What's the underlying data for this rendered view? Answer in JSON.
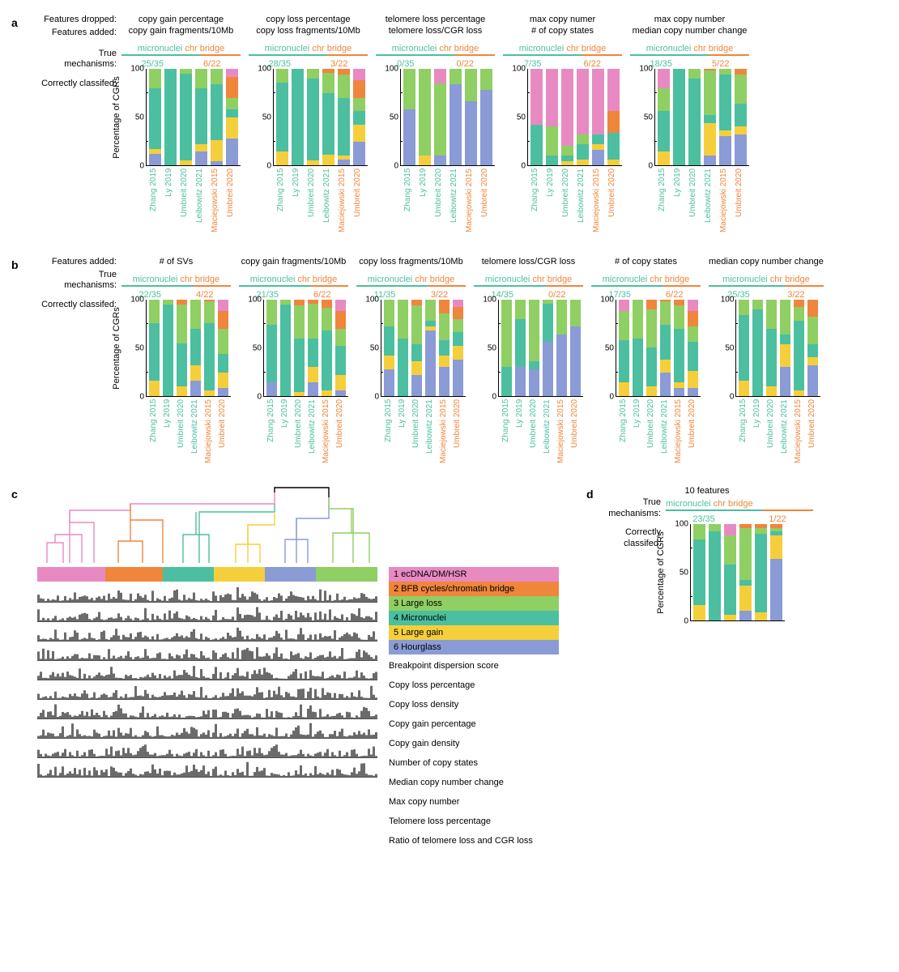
{
  "colors": {
    "micronuclei_text": "#4bbfa0",
    "chrbridge_text": "#f0853c",
    "cat1_ecDNA": "#e88ac2",
    "cat2_BFB": "#f0853c",
    "cat3_largeloss": "#8fcf63",
    "cat4_micronuclei": "#4bbfa0",
    "cat5_largegain": "#f5cf3b",
    "cat6_hourglass": "#8a9bd6",
    "axis": "#000000",
    "feat_gray": "#6b6b6b",
    "dend_black": "#000000"
  },
  "fontsizes": {
    "label": 11,
    "axis": 10,
    "panel_letter": 14
  },
  "y_axis": {
    "title": "Percentage of CGRs",
    "ticks": [
      0,
      50,
      100
    ],
    "minor_ticks": [
      25,
      75
    ]
  },
  "studies": [
    {
      "label": "Zhang 2015",
      "group": "micronuclei"
    },
    {
      "label": "Ly 2019",
      "group": "micronuclei"
    },
    {
      "label": "Umbreit 2020",
      "group": "micronuclei"
    },
    {
      "label": "Leibowitz 2021",
      "group": "micronuclei"
    },
    {
      "label": "Maciejowski 2015",
      "group": "chrbridge"
    },
    {
      "label": "Umbreit 2020",
      "group": "chrbridge"
    }
  ],
  "side_labels": {
    "features_dropped": "Features dropped:",
    "features_added": "Features added:",
    "true_mechanisms": "True mechanisms:",
    "correctly_classified": "Correctly classifed:"
  },
  "mechanisms": {
    "m1": "micronuclei",
    "m2": "chr bridge"
  },
  "segment_order": [
    "cat6_hourglass",
    "cat5_largegain",
    "cat4_micronuclei",
    "cat3_largeloss",
    "cat2_BFB",
    "cat1_ecDNA"
  ],
  "panel_a": {
    "subplots": [
      {
        "dropped": "copy gain percentage",
        "added": "copy gain fragments/10Mb",
        "cc_m": "25/35",
        "cc_b": "6/22",
        "bars": [
          [
            12,
            5,
            63,
            20,
            0,
            0
          ],
          [
            0,
            0,
            100,
            0,
            0,
            0
          ],
          [
            0,
            5,
            90,
            5,
            0,
            0
          ],
          [
            14,
            8,
            58,
            20,
            0,
            0
          ],
          [
            4,
            22,
            58,
            16,
            0,
            0
          ],
          [
            28,
            22,
            8,
            12,
            22,
            8
          ]
        ]
      },
      {
        "dropped": "copy loss percentage",
        "added": "copy loss fragments/10Mb",
        "cc_m": "28/35",
        "cc_b": "3/22",
        "bars": [
          [
            0,
            14,
            72,
            14,
            0,
            0
          ],
          [
            0,
            0,
            100,
            0,
            0,
            0
          ],
          [
            0,
            5,
            85,
            10,
            0,
            0
          ],
          [
            0,
            11,
            64,
            21,
            4,
            0
          ],
          [
            6,
            4,
            60,
            24,
            6,
            0
          ],
          [
            24,
            18,
            14,
            14,
            18,
            12
          ]
        ]
      },
      {
        "dropped": "telomere loss percentage",
        "added": "telomere loss/CGR loss",
        "cc_m": "0/35",
        "cc_b": "0/22",
        "bars": [
          [
            58,
            0,
            0,
            42,
            0,
            0
          ],
          [
            0,
            10,
            0,
            90,
            0,
            0
          ],
          [
            10,
            0,
            0,
            75,
            0,
            15
          ],
          [
            84,
            0,
            0,
            16,
            0,
            0
          ],
          [
            66,
            0,
            0,
            34,
            0,
            0
          ],
          [
            78,
            0,
            0,
            22,
            0,
            0
          ]
        ]
      },
      {
        "dropped": "max copy numer",
        "added": "# of copy states",
        "cc_m": "7/35",
        "cc_b": "6/22",
        "bars": [
          [
            0,
            0,
            42,
            0,
            0,
            58
          ],
          [
            0,
            0,
            10,
            30,
            0,
            60
          ],
          [
            0,
            4,
            6,
            10,
            0,
            80
          ],
          [
            0,
            6,
            16,
            10,
            0,
            68
          ],
          [
            16,
            6,
            10,
            0,
            0,
            68
          ],
          [
            0,
            6,
            28,
            0,
            22,
            44
          ]
        ]
      },
      {
        "dropped": "max copy number",
        "added": "median copy number change",
        "cc_m": "18/35",
        "cc_b": "5/22",
        "bars": [
          [
            0,
            14,
            42,
            24,
            0,
            20
          ],
          [
            0,
            0,
            100,
            0,
            0,
            0
          ],
          [
            0,
            0,
            90,
            10,
            0,
            0
          ],
          [
            10,
            34,
            8,
            46,
            2,
            0
          ],
          [
            30,
            6,
            58,
            6,
            0,
            0
          ],
          [
            32,
            8,
            24,
            30,
            6,
            0
          ]
        ]
      }
    ]
  },
  "panel_b": {
    "subplots": [
      {
        "added": "# of SVs",
        "cc_m": "22/35",
        "cc_b": "4/22",
        "bars": [
          [
            0,
            16,
            60,
            24,
            0,
            0
          ],
          [
            0,
            0,
            95,
            5,
            0,
            0
          ],
          [
            0,
            10,
            45,
            40,
            5,
            0
          ],
          [
            16,
            16,
            38,
            30,
            0,
            0
          ],
          [
            0,
            6,
            70,
            22,
            2,
            0
          ],
          [
            8,
            16,
            20,
            26,
            18,
            12
          ]
        ]
      },
      {
        "added": "copy gain fragments/10Mb",
        "cc_m": "21/35",
        "cc_b": "6/22",
        "bars": [
          [
            14,
            0,
            60,
            26,
            0,
            0
          ],
          [
            0,
            0,
            95,
            5,
            0,
            0
          ],
          [
            0,
            4,
            56,
            34,
            6,
            0
          ],
          [
            14,
            16,
            30,
            36,
            4,
            0
          ],
          [
            0,
            6,
            62,
            24,
            8,
            0
          ],
          [
            6,
            16,
            30,
            18,
            18,
            12
          ]
        ]
      },
      {
        "added": "copy loss fragments/10Mb",
        "cc_m": "11/35",
        "cc_b": "3/22",
        "bars": [
          [
            28,
            14,
            30,
            28,
            0,
            0
          ],
          [
            0,
            0,
            60,
            40,
            0,
            0
          ],
          [
            22,
            14,
            18,
            40,
            6,
            0
          ],
          [
            68,
            4,
            6,
            22,
            0,
            0
          ],
          [
            30,
            12,
            16,
            28,
            14,
            0
          ],
          [
            38,
            14,
            14,
            14,
            12,
            8
          ]
        ]
      },
      {
        "added": "telomere loss/CGR loss",
        "cc_m": "14/35",
        "cc_b": "0/22",
        "bars": [
          [
            0,
            0,
            30,
            70,
            0,
            0
          ],
          [
            30,
            0,
            50,
            20,
            0,
            0
          ],
          [
            28,
            0,
            8,
            64,
            0,
            0
          ],
          [
            56,
            0,
            40,
            4,
            0,
            0
          ],
          [
            64,
            0,
            0,
            36,
            0,
            0
          ],
          [
            72,
            0,
            0,
            28,
            0,
            0
          ]
        ]
      },
      {
        "added": "# of copy states",
        "cc_m": "17/35",
        "cc_b": "6/22",
        "bars": [
          [
            0,
            14,
            44,
            30,
            0,
            12
          ],
          [
            0,
            0,
            60,
            40,
            0,
            0
          ],
          [
            0,
            10,
            40,
            40,
            10,
            0
          ],
          [
            24,
            14,
            36,
            24,
            2,
            0
          ],
          [
            8,
            6,
            56,
            24,
            6,
            0
          ],
          [
            8,
            18,
            30,
            16,
            16,
            12
          ]
        ]
      },
      {
        "added": "median copy number change",
        "cc_m": "25/35",
        "cc_b": "3/22",
        "bars": [
          [
            0,
            16,
            68,
            16,
            0,
            0
          ],
          [
            0,
            0,
            90,
            10,
            0,
            0
          ],
          [
            0,
            10,
            60,
            30,
            0,
            0
          ],
          [
            30,
            24,
            10,
            36,
            0,
            0
          ],
          [
            0,
            6,
            72,
            14,
            8,
            0
          ],
          [
            32,
            8,
            14,
            28,
            18,
            0
          ]
        ]
      }
    ]
  },
  "panel_c": {
    "legend": [
      {
        "label": "1 ecDNA/DM/HSR",
        "color_key": "cat1_ecDNA"
      },
      {
        "label": "2 BFB cycles/chromatin bridge",
        "color_key": "cat2_BFB"
      },
      {
        "label": "3 Large loss",
        "color_key": "cat3_largeloss"
      },
      {
        "label": "4 Micronuclei",
        "color_key": "cat4_micronuclei"
      },
      {
        "label": "5 Large gain",
        "color_key": "cat5_largegain"
      },
      {
        "label": "6 Hourglass",
        "color_key": "cat6_hourglass"
      }
    ],
    "band_order": [
      {
        "key": "cat1_ecDNA",
        "width": 0.2
      },
      {
        "key": "cat2_BFB",
        "width": 0.17
      },
      {
        "key": "cat4_micronuclei",
        "width": 0.15
      },
      {
        "key": "cat5_largegain",
        "width": 0.15
      },
      {
        "key": "cat6_hourglass",
        "width": 0.15
      },
      {
        "key": "cat3_largeloss",
        "width": 0.18
      }
    ],
    "feature_labels": [
      "Breakpoint dispersion score",
      "Copy loss percentage",
      "Copy loss density",
      "Copy gain percentage",
      "Copy gain density",
      "Number of copy states",
      "Median copy number change",
      "Max copy number",
      "Telomere loss percentage",
      "Ratio of telomere loss and CGR loss"
    ],
    "dendrogram": {
      "lines": [
        {
          "color_key": "dend_black",
          "pts": [
            [
              293,
              8
            ],
            [
              293,
              2
            ],
            [
              360,
              2
            ],
            [
              360,
              14
            ]
          ]
        },
        {
          "color_key": "cat1_ecDNA",
          "pts": [
            [
              40,
              95
            ],
            [
              40,
              30
            ],
            [
              115,
              30
            ],
            [
              115,
              22
            ],
            [
              293,
              22
            ],
            [
              293,
              8
            ]
          ]
        },
        {
          "color_key": "cat1_ecDNA",
          "pts": [
            [
              12,
              95
            ],
            [
              12,
              70
            ],
            [
              32,
              70
            ],
            [
              32,
              95
            ]
          ]
        },
        {
          "color_key": "cat1_ecDNA",
          "pts": [
            [
              22,
              70
            ],
            [
              22,
              60
            ],
            [
              55,
              60
            ],
            [
              55,
              95
            ]
          ]
        },
        {
          "color_key": "cat1_ecDNA",
          "pts": [
            [
              70,
              95
            ],
            [
              70,
              45
            ],
            [
              40,
              45
            ],
            [
              40,
              30
            ]
          ]
        },
        {
          "color_key": "cat2_BFB",
          "pts": [
            [
              115,
              22
            ],
            [
              115,
              42
            ],
            [
              155,
              42
            ],
            [
              155,
              95
            ]
          ]
        },
        {
          "color_key": "cat2_BFB",
          "pts": [
            [
              100,
              95
            ],
            [
              100,
              68
            ],
            [
              130,
              68
            ],
            [
              130,
              95
            ]
          ]
        },
        {
          "color_key": "cat2_BFB",
          "pts": [
            [
              115,
              68
            ],
            [
              115,
              42
            ]
          ]
        },
        {
          "color_key": "cat4_micronuclei",
          "pts": [
            [
              200,
              95
            ],
            [
              200,
              32
            ],
            [
              293,
              32
            ],
            [
              293,
              22
            ]
          ]
        },
        {
          "color_key": "cat4_micronuclei",
          "pts": [
            [
              180,
              95
            ],
            [
              180,
              60
            ],
            [
              212,
              60
            ],
            [
              212,
              95
            ]
          ]
        },
        {
          "color_key": "cat4_micronuclei",
          "pts": [
            [
              196,
              60
            ],
            [
              196,
              32
            ]
          ]
        },
        {
          "color_key": "cat5_largegain",
          "pts": [
            [
              260,
              95
            ],
            [
              260,
              48
            ],
            [
              293,
              48
            ],
            [
              293,
              32
            ]
          ]
        },
        {
          "color_key": "cat5_largegain",
          "pts": [
            [
              245,
              95
            ],
            [
              245,
              72
            ],
            [
              275,
              72
            ],
            [
              275,
              95
            ]
          ]
        },
        {
          "color_key": "cat5_largegain",
          "pts": [
            [
              260,
              72
            ],
            [
              260,
              48
            ]
          ]
        },
        {
          "color_key": "cat6_hourglass",
          "pts": [
            [
              320,
              95
            ],
            [
              320,
              40
            ],
            [
              360,
              40
            ],
            [
              360,
              14
            ]
          ]
        },
        {
          "color_key": "cat6_hourglass",
          "pts": [
            [
              306,
              95
            ],
            [
              306,
              66
            ],
            [
              334,
              66
            ],
            [
              334,
              95
            ]
          ]
        },
        {
          "color_key": "cat6_hourglass",
          "pts": [
            [
              320,
              66
            ],
            [
              320,
              40
            ]
          ]
        },
        {
          "color_key": "cat3_largeloss",
          "pts": [
            [
              390,
              95
            ],
            [
              390,
              28
            ],
            [
              360,
              28
            ],
            [
              360,
              14
            ]
          ]
        },
        {
          "color_key": "cat3_largeloss",
          "pts": [
            [
              365,
              95
            ],
            [
              365,
              58
            ],
            [
              410,
              58
            ],
            [
              410,
              95
            ]
          ]
        },
        {
          "color_key": "cat3_largeloss",
          "pts": [
            [
              388,
              58
            ],
            [
              388,
              28
            ]
          ]
        }
      ]
    }
  },
  "panel_d": {
    "title": "10 features",
    "cc_m": "23/35",
    "cc_b": "1/22",
    "bars": [
      [
        0,
        16,
        68,
        16,
        0,
        0
      ],
      [
        0,
        0,
        92,
        8,
        0,
        0
      ],
      [
        0,
        6,
        52,
        30,
        0,
        12
      ],
      [
        10,
        26,
        6,
        54,
        4,
        0
      ],
      [
        0,
        8,
        82,
        6,
        4,
        0
      ],
      [
        64,
        24,
        4,
        4,
        4,
        0
      ]
    ]
  }
}
